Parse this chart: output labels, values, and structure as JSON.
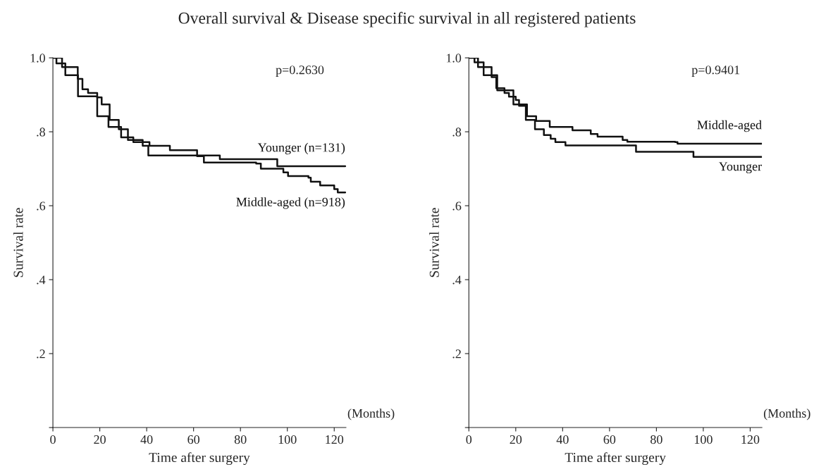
{
  "chart_data": [
    {
      "type": "step",
      "title": "Overall survival & Disease specific survival in all registered patients",
      "xlabel": "Time after surgery",
      "ylabel": "Survival rate",
      "xlim": [
        0,
        125
      ],
      "xticks": [
        0,
        20,
        40,
        60,
        80,
        100,
        120
      ],
      "ylim": [
        0,
        1
      ],
      "yticks": [
        {
          "value": 0,
          "label": null
        },
        {
          "value": 0.2,
          "label": ".2"
        },
        {
          "value": 0.4,
          "label": ".4"
        },
        {
          "value": 0.6,
          "label": ".6"
        },
        {
          "value": 0.8,
          "label": ".8"
        },
        {
          "value": 1,
          "label": "1.0"
        }
      ],
      "grid": false,
      "legend": false,
      "marker": "none",
      "line_style": "solid",
      "annotations": [
        "p=0.2630",
        "(Months)"
      ],
      "series": [
        {
          "name": "Middle-aged (n=918)",
          "color": "#111111",
          "x": [
            0,
            1.5,
            5.3,
            10.7,
            18.9,
            23.7,
            29.1,
            34.3,
            41.2,
            49.9,
            61.5,
            64.4,
            86.7,
            88.7,
            98.3,
            100.3,
            109,
            110,
            114,
            120,
            121.5,
            124.7
          ],
          "values": [
            1.0,
            0.985,
            0.953,
            0.896,
            0.842,
            0.813,
            0.785,
            0.772,
            0.762,
            0.75,
            0.734,
            0.717,
            0.714,
            0.7,
            0.69,
            0.68,
            0.676,
            0.665,
            0.655,
            0.645,
            0.636,
            0.636
          ]
        },
        {
          "name": "Younger (n=131)",
          "color": "#111111",
          "x": [
            0,
            3.9,
            8.2,
            10.6,
            12.6,
            15,
            18.9,
            20.8,
            24.2,
            28.1,
            32,
            38.3,
            40.7,
            71.2,
            95.7,
            124.7
          ],
          "values": [
            1.0,
            0.975,
            0.975,
            0.943,
            0.915,
            0.905,
            0.893,
            0.874,
            0.832,
            0.807,
            0.778,
            0.762,
            0.736,
            0.726,
            0.707,
            0.707
          ]
        }
      ]
    },
    {
      "type": "step",
      "xlabel": "Time after surgery",
      "ylabel": "Survival rate",
      "xlim": [
        0,
        125
      ],
      "xticks": [
        0,
        20,
        40,
        60,
        80,
        100,
        120
      ],
      "ylim": [
        0,
        1
      ],
      "yticks": [
        {
          "value": 0,
          "label": null
        },
        {
          "value": 0.2,
          "label": ".2"
        },
        {
          "value": 0.4,
          "label": ".4"
        },
        {
          "value": 0.6,
          "label": ".6"
        },
        {
          "value": 0.8,
          "label": ".8"
        },
        {
          "value": 1,
          "label": "1.0"
        }
      ],
      "grid": false,
      "legend": false,
      "marker": "none",
      "line_style": "solid",
      "annotations": [
        "p=0.9401",
        "(Months)"
      ],
      "series": [
        {
          "name": "Middle-aged",
          "color": "#111111",
          "x": [
            0,
            2.4,
            6.3,
            12.1,
            19,
            24.8,
            28.7,
            34.5,
            44.2,
            52,
            54.9,
            65.6,
            67.6,
            88,
            89,
            125
          ],
          "values": [
            1.0,
            0.988,
            0.953,
            0.912,
            0.874,
            0.842,
            0.829,
            0.813,
            0.804,
            0.794,
            0.787,
            0.778,
            0.773,
            0.772,
            0.768,
            0.768
          ]
        },
        {
          "name": "Younger",
          "color": "#111111",
          "x": [
            0,
            3.9,
            8.2,
            9.7,
            11.7,
            15.2,
            17.1,
            20,
            21.4,
            24.3,
            28.2,
            32,
            34.9,
            36.9,
            41.2,
            71.3,
            95.8,
            125
          ],
          "values": [
            1.0,
            0.975,
            0.975,
            0.948,
            0.918,
            0.905,
            0.895,
            0.886,
            0.87,
            0.832,
            0.807,
            0.791,
            0.781,
            0.772,
            0.763,
            0.746,
            0.732,
            0.732
          ]
        }
      ]
    }
  ]
}
